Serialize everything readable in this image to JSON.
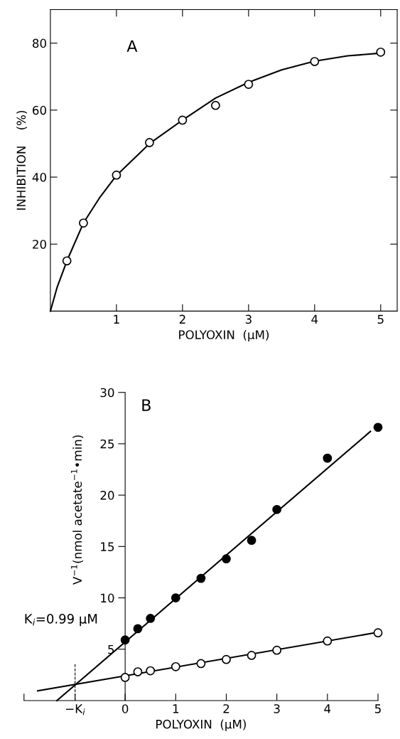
{
  "chart_data": [
    {
      "type": "scatter",
      "xlabel": "POLYOXIN  (μM)",
      "ylabel": "INHIBITION    (%)",
      "annotations": [
        "A"
      ],
      "xlim": [
        0,
        5.25
      ],
      "ylim": [
        0,
        90
      ],
      "xticks": [
        1,
        2,
        3,
        4,
        5
      ],
      "yticks": [
        20,
        40,
        60,
        80
      ],
      "grid": false,
      "legend": false,
      "series": [
        {
          "color": "#ffffff",
          "marker": "circle",
          "x": [
            0.25,
            0.5,
            1,
            1.5,
            2,
            2.5,
            3,
            4,
            5
          ],
          "values": [
            15.0,
            26.3,
            40.6,
            50.3,
            57.0,
            61.4,
            67.7,
            74.5,
            77.3
          ]
        },
        {
          "type": "line",
          "marker": "none",
          "color": "#000000",
          "x": [
            0,
            0.1,
            0.25,
            0.5,
            0.75,
            1,
            1.5,
            2,
            2.5,
            3,
            3.5,
            4,
            4.5,
            5
          ],
          "values": [
            0,
            7,
            15,
            26.3,
            34,
            40.5,
            50,
            57,
            63.6,
            68.3,
            72,
            74.6,
            76.2,
            77
          ]
        }
      ]
    },
    {
      "type": "scatter",
      "xlabel": "POLYOXIN  (μM)",
      "ylabel": "V$^{−1}$(nmol acetate$^{−1}$•min)",
      "annotations": [
        "B",
        "K$_{i}$=0.99 μM"
      ],
      "xlim": [
        -2,
        5
      ],
      "ylim": [
        0,
        30
      ],
      "xticks": [
        {
          "value": -2,
          "label": null
        },
        {
          "value": -0.99,
          "label": "−K$_{i}$"
        },
        0,
        1,
        2,
        3,
        4,
        5
      ],
      "yticks": [
        5,
        10,
        15,
        20,
        25,
        30
      ],
      "grid": false,
      "legend": false,
      "ref_lines": [
        {
          "axis": "x",
          "value": -0.99,
          "line_style": "dashed",
          "color": "#000000"
        }
      ],
      "series": [
        {
          "color": "#000000",
          "marker": "circle",
          "x": [
            0,
            0.25,
            0.5,
            1,
            1.5,
            2,
            2.5,
            3,
            4,
            5
          ],
          "values": [
            5.9,
            7.0,
            8.0,
            10.0,
            11.9,
            13.8,
            15.6,
            18.6,
            23.6,
            26.6
          ]
        },
        {
          "color": "#ffffff",
          "marker": "circle",
          "x": [
            0,
            0.25,
            0.5,
            1,
            1.5,
            2,
            2.5,
            3,
            4,
            5
          ],
          "values": [
            2.25,
            2.8,
            2.9,
            3.3,
            3.6,
            4.0,
            4.4,
            4.9,
            5.8,
            6.6
          ]
        },
        {
          "type": "line",
          "marker": "none",
          "color": "#000000",
          "x": [
            -1.35,
            4.85
          ],
          "values": [
            0,
            26.2
          ]
        },
        {
          "type": "line",
          "marker": "none",
          "color": "#000000",
          "x": [
            -1.73,
            5
          ],
          "values": [
            0.94,
            6.65
          ]
        }
      ]
    }
  ]
}
